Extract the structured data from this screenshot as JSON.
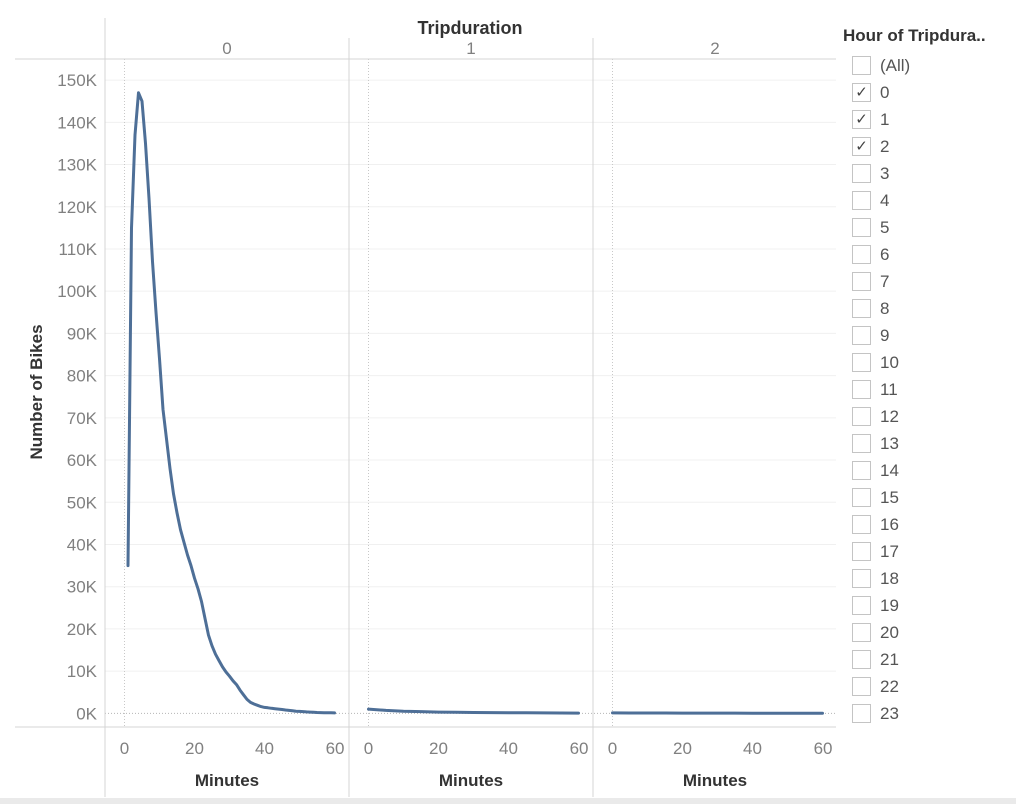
{
  "chart_data": {
    "type": "line",
    "title": "Tripduration",
    "ylabel": "Number of Bikes",
    "xlabel": "Minutes",
    "ylim": [
      -3000,
      155000
    ],
    "xlim": [
      -3,
      61
    ],
    "y_ticks": [
      "0K",
      "10K",
      "20K",
      "30K",
      "40K",
      "50K",
      "60K",
      "70K",
      "80K",
      "90K",
      "100K",
      "110K",
      "120K",
      "130K",
      "140K",
      "150K"
    ],
    "y_tick_values": [
      0,
      10000,
      20000,
      30000,
      40000,
      50000,
      60000,
      70000,
      80000,
      90000,
      100000,
      110000,
      120000,
      130000,
      140000,
      150000
    ],
    "x_ticks": [
      "0",
      "20",
      "40",
      "60"
    ],
    "x_tick_values": [
      0,
      20,
      40,
      60
    ],
    "grid": true,
    "color": "#4e6f97",
    "panels": [
      {
        "label": "0",
        "series": [
          {
            "x": [
              1,
              2,
              3,
              4,
              5,
              6,
              7,
              8,
              9,
              10,
              11,
              12,
              13,
              14,
              15,
              16,
              17,
              18,
              19,
              20,
              21,
              22,
              23,
              24,
              25,
              26,
              27,
              28,
              29,
              30,
              31,
              32,
              33,
              34,
              35,
              36,
              37,
              38,
              39,
              40,
              41,
              42,
              43,
              44,
              45,
              46,
              47,
              48,
              49,
              50,
              51,
              52,
              53,
              54,
              55,
              56,
              57,
              58,
              59,
              60
            ],
            "y": [
              35000,
              115000,
              137000,
              147000,
              145000,
              135000,
              122000,
              107000,
              95000,
              84000,
              72000,
              65000,
              58000,
              52000,
              47500,
              43500,
              40500,
              37500,
              35000,
              32000,
              29500,
              26500,
              22500,
              18500,
              16000,
              14000,
              12500,
              11000,
              9800,
              8800,
              7700,
              6800,
              5500,
              4400,
              3300,
              2600,
              2200,
              1900,
              1600,
              1400,
              1300,
              1200,
              1100,
              1000,
              900,
              800,
              700,
              600,
              500,
              450,
              400,
              350,
              300,
              250,
              200,
              180,
              160,
              140,
              120,
              100
            ]
          }
        ]
      },
      {
        "label": "1",
        "series": [
          {
            "x": [
              0,
              5,
              10,
              15,
              20,
              25,
              30,
              35,
              40,
              45,
              50,
              55,
              60
            ],
            "y": [
              1000,
              700,
              500,
              400,
              300,
              250,
              200,
              180,
              150,
              120,
              100,
              80,
              60
            ]
          }
        ]
      },
      {
        "label": "2",
        "series": [
          {
            "x": [
              0,
              5,
              10,
              15,
              20,
              25,
              30,
              35,
              40,
              45,
              50,
              55,
              60
            ],
            "y": [
              100,
              90,
              80,
              70,
              60,
              55,
              50,
              45,
              40,
              35,
              30,
              25,
              20
            ]
          }
        ]
      }
    ]
  },
  "filter": {
    "title": "Hour of Tripdura..",
    "items": [
      {
        "label": "(All)",
        "checked": false
      },
      {
        "label": "0",
        "checked": true
      },
      {
        "label": "1",
        "checked": true
      },
      {
        "label": "2",
        "checked": true
      },
      {
        "label": "3",
        "checked": false
      },
      {
        "label": "4",
        "checked": false
      },
      {
        "label": "5",
        "checked": false
      },
      {
        "label": "6",
        "checked": false
      },
      {
        "label": "7",
        "checked": false
      },
      {
        "label": "8",
        "checked": false
      },
      {
        "label": "9",
        "checked": false
      },
      {
        "label": "10",
        "checked": false
      },
      {
        "label": "11",
        "checked": false
      },
      {
        "label": "12",
        "checked": false
      },
      {
        "label": "13",
        "checked": false
      },
      {
        "label": "14",
        "checked": false
      },
      {
        "label": "15",
        "checked": false
      },
      {
        "label": "16",
        "checked": false
      },
      {
        "label": "17",
        "checked": false
      },
      {
        "label": "18",
        "checked": false
      },
      {
        "label": "19",
        "checked": false
      },
      {
        "label": "20",
        "checked": false
      },
      {
        "label": "21",
        "checked": false
      },
      {
        "label": "22",
        "checked": false
      },
      {
        "label": "23",
        "checked": false
      }
    ],
    "check_glyph": "✓"
  }
}
